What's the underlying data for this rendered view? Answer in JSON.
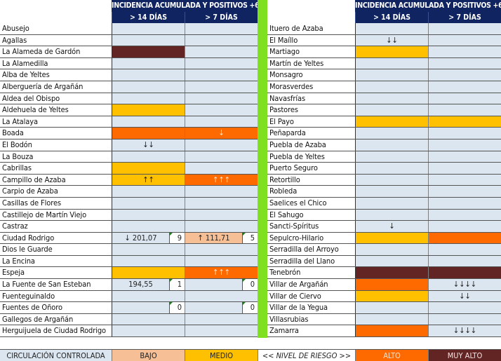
{
  "header": {
    "title": "INCIDENCIA ACUMULADA Y POSITIVOS +60 AÑOS",
    "col1": "> 14 DÍAS",
    "col2": "> 7 DÍAS"
  },
  "colors": {
    "header_bg": "#0f2461",
    "cell_default": "#dce6f0",
    "bajo": "#f7bf95",
    "medio": "#ffc000",
    "alto": "#ff6a00",
    "muy_alto": "#632523",
    "separator": "#7ee01e"
  },
  "left_rows": [
    {
      "name": "Abusejo",
      "c1": {
        "level": "",
        "text": ""
      },
      "c2": {
        "level": "",
        "text": ""
      }
    },
    {
      "name": "Agallas",
      "c1": {
        "level": "",
        "text": ""
      },
      "c2": {
        "level": "",
        "text": ""
      }
    },
    {
      "name": "La Alameda de Gardón",
      "c1": {
        "level": "dark",
        "text": ""
      },
      "c2": {
        "level": "",
        "text": ""
      }
    },
    {
      "name": "La Alamedilla",
      "c1": {
        "level": "",
        "text": ""
      },
      "c2": {
        "level": "",
        "text": ""
      }
    },
    {
      "name": "Alba de Yeltes",
      "c1": {
        "level": "",
        "text": ""
      },
      "c2": {
        "level": "",
        "text": ""
      }
    },
    {
      "name": "Alberguería de Argañán",
      "c1": {
        "level": "",
        "text": ""
      },
      "c2": {
        "level": "",
        "text": ""
      }
    },
    {
      "name": "Aldea del Obispo",
      "c1": {
        "level": "",
        "text": ""
      },
      "c2": {
        "level": "",
        "text": ""
      }
    },
    {
      "name": "Aldehuela de Yeltes",
      "c1": {
        "level": "yellow",
        "text": ""
      },
      "c2": {
        "level": "",
        "text": ""
      }
    },
    {
      "name": "La Atalaya",
      "c1": {
        "level": "",
        "text": ""
      },
      "c2": {
        "level": "",
        "text": ""
      }
    },
    {
      "name": "Boada",
      "c1": {
        "level": "orange",
        "text": ""
      },
      "c2": {
        "level": "orange",
        "text": "↓"
      }
    },
    {
      "name": "El Bodón",
      "c1": {
        "level": "",
        "text": "↓↓"
      },
      "c2": {
        "level": "",
        "text": ""
      }
    },
    {
      "name": "La Bouza",
      "c1": {
        "level": "",
        "text": ""
      },
      "c2": {
        "level": "",
        "text": ""
      }
    },
    {
      "name": "Cabrillas",
      "c1": {
        "level": "yellow",
        "text": ""
      },
      "c2": {
        "level": "",
        "text": ""
      }
    },
    {
      "name": "Campillo de Azaba",
      "c1": {
        "level": "yellow",
        "text": "↑↑"
      },
      "c2": {
        "level": "orange",
        "text": "↑↑↑"
      }
    },
    {
      "name": "Carpio de Azaba",
      "c1": {
        "level": "",
        "text": ""
      },
      "c2": {
        "level": "",
        "text": ""
      }
    },
    {
      "name": "Casillas de Flores",
      "c1": {
        "level": "",
        "text": ""
      },
      "c2": {
        "level": "",
        "text": ""
      }
    },
    {
      "name": "Castillejo de Martín Viejo",
      "c1": {
        "level": "",
        "text": ""
      },
      "c2": {
        "level": "",
        "text": ""
      }
    },
    {
      "name": "Castraz",
      "c1": {
        "level": "",
        "text": ""
      },
      "c2": {
        "level": "",
        "text": ""
      }
    },
    {
      "name": "Ciudad Rodrigo",
      "c1": {
        "level": "",
        "text": "↓ 201,07",
        "box": "9"
      },
      "c2": {
        "level": "peach",
        "text": "↑ 111,71",
        "box": "5"
      }
    },
    {
      "name": "Dios le Guarde",
      "c1": {
        "level": "",
        "text": ""
      },
      "c2": {
        "level": "",
        "text": ""
      }
    },
    {
      "name": "La Encina",
      "c1": {
        "level": "",
        "text": ""
      },
      "c2": {
        "level": "",
        "text": ""
      }
    },
    {
      "name": "Espeja",
      "c1": {
        "level": "yellow",
        "text": ""
      },
      "c2": {
        "level": "orange",
        "text": "↑↑↑"
      }
    },
    {
      "name": "La Fuente de San Esteban",
      "c1": {
        "level": "",
        "text": "194,55",
        "box": "1"
      },
      "c2": {
        "level": "",
        "text": "",
        "box": "0"
      }
    },
    {
      "name": "Fuenteguinaldo",
      "c1": {
        "level": "",
        "text": ""
      },
      "c2": {
        "level": "",
        "text": ""
      }
    },
    {
      "name": "Fuentes de Oñoro",
      "c1": {
        "level": "",
        "text": "",
        "box": "0"
      },
      "c2": {
        "level": "",
        "text": "",
        "box": "0"
      }
    },
    {
      "name": "Gallegos de Argañán",
      "c1": {
        "level": "",
        "text": ""
      },
      "c2": {
        "level": "",
        "text": ""
      }
    },
    {
      "name": "Herguijuela de Ciudad Rodrigo",
      "c1": {
        "level": "",
        "text": ""
      },
      "c2": {
        "level": "",
        "text": ""
      }
    }
  ],
  "right_rows": [
    {
      "name": "Ituero de Azaba",
      "c1": {
        "level": "",
        "text": ""
      },
      "c2": {
        "level": "",
        "text": ""
      }
    },
    {
      "name": "El Maíllo",
      "c1": {
        "level": "",
        "text": "↓↓"
      },
      "c2": {
        "level": "",
        "text": ""
      }
    },
    {
      "name": "Martiago",
      "c1": {
        "level": "yellow",
        "text": ""
      },
      "c2": {
        "level": "",
        "text": ""
      }
    },
    {
      "name": "Martín de Yeltes",
      "c1": {
        "level": "",
        "text": ""
      },
      "c2": {
        "level": "",
        "text": ""
      }
    },
    {
      "name": "Monsagro",
      "c1": {
        "level": "",
        "text": ""
      },
      "c2": {
        "level": "",
        "text": ""
      }
    },
    {
      "name": "Morasverdes",
      "c1": {
        "level": "",
        "text": ""
      },
      "c2": {
        "level": "",
        "text": ""
      }
    },
    {
      "name": "Navasfrías",
      "c1": {
        "level": "",
        "text": ""
      },
      "c2": {
        "level": "",
        "text": ""
      }
    },
    {
      "name": "Pastores",
      "c1": {
        "level": "",
        "text": ""
      },
      "c2": {
        "level": "",
        "text": ""
      }
    },
    {
      "name": "El Payo",
      "c1": {
        "level": "yellow",
        "text": ""
      },
      "c2": {
        "level": "yellow",
        "text": ""
      }
    },
    {
      "name": "Peñaparda",
      "c1": {
        "level": "",
        "text": ""
      },
      "c2": {
        "level": "",
        "text": ""
      }
    },
    {
      "name": "Puebla de Azaba",
      "c1": {
        "level": "",
        "text": ""
      },
      "c2": {
        "level": "",
        "text": ""
      }
    },
    {
      "name": "Puebla de Yeltes",
      "c1": {
        "level": "",
        "text": ""
      },
      "c2": {
        "level": "",
        "text": ""
      }
    },
    {
      "name": "Puerto Seguro",
      "c1": {
        "level": "",
        "text": ""
      },
      "c2": {
        "level": "",
        "text": ""
      }
    },
    {
      "name": "Retortillo",
      "c1": {
        "level": "",
        "text": ""
      },
      "c2": {
        "level": "",
        "text": ""
      }
    },
    {
      "name": "Robleda",
      "c1": {
        "level": "",
        "text": ""
      },
      "c2": {
        "level": "",
        "text": ""
      }
    },
    {
      "name": "Saelices el Chico",
      "c1": {
        "level": "",
        "text": ""
      },
      "c2": {
        "level": "",
        "text": ""
      }
    },
    {
      "name": "El Sahugo",
      "c1": {
        "level": "",
        "text": ""
      },
      "c2": {
        "level": "",
        "text": ""
      }
    },
    {
      "name": "Sancti-Spíritus",
      "c1": {
        "level": "",
        "text": "↓"
      },
      "c2": {
        "level": "",
        "text": ""
      }
    },
    {
      "name": "Sepulcro-Hilario",
      "c1": {
        "level": "yellow",
        "text": ""
      },
      "c2": {
        "level": "orange",
        "text": ""
      }
    },
    {
      "name": "Serradilla del Arroyo",
      "c1": {
        "level": "",
        "text": ""
      },
      "c2": {
        "level": "",
        "text": ""
      }
    },
    {
      "name": "Serradilla del Llano",
      "c1": {
        "level": "",
        "text": ""
      },
      "c2": {
        "level": "",
        "text": ""
      }
    },
    {
      "name": "Tenebrón",
      "c1": {
        "level": "dark",
        "text": ""
      },
      "c2": {
        "level": "dark",
        "text": ""
      }
    },
    {
      "name": "Villar de Argañán",
      "c1": {
        "level": "orange",
        "text": ""
      },
      "c2": {
        "level": "",
        "text": "↓↓↓↓"
      }
    },
    {
      "name": "Villar de Ciervo",
      "c1": {
        "level": "yellow",
        "text": ""
      },
      "c2": {
        "level": "",
        "text": "↓↓"
      }
    },
    {
      "name": "Villar de la Yegua",
      "c1": {
        "level": "",
        "text": ""
      },
      "c2": {
        "level": "",
        "text": ""
      }
    },
    {
      "name": "Villasrubias",
      "c1": {
        "level": "",
        "text": ""
      },
      "c2": {
        "level": "",
        "text": ""
      }
    },
    {
      "name": "Zamarra",
      "c1": {
        "level": "orange",
        "text": ""
      },
      "c2": {
        "level": "",
        "text": "↓↓↓↓"
      }
    }
  ],
  "legend": {
    "controlada": "CIRCULACIÓN CONTROLADA",
    "bajo": "BAJO",
    "medio": "MEDIO",
    "nivel": "<< NIVEL DE RIESGO >>",
    "alto": "ALTO",
    "muy_alto": "MUY ALTO"
  }
}
